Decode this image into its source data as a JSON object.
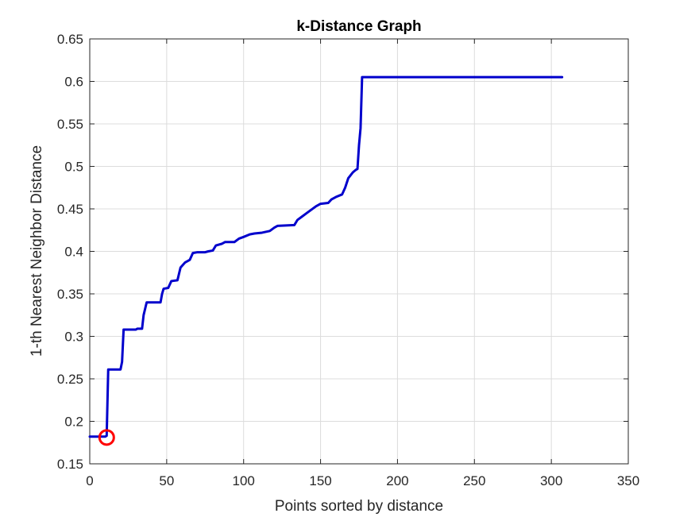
{
  "chart_data": {
    "type": "line",
    "title": "k-Distance Graph",
    "xlabel": "Points sorted by distance",
    "ylabel": "1-th Nearest Neighbor Distance",
    "xlim": [
      0,
      350
    ],
    "ylim": [
      0.15,
      0.65
    ],
    "xticks": [
      "0",
      "50",
      "100",
      "150",
      "200",
      "250",
      "300",
      "350"
    ],
    "yticks": [
      "0.15",
      "0.2",
      "0.25",
      "0.3",
      "0.35",
      "0.4",
      "0.45",
      "0.5",
      "0.55",
      "0.6",
      "0.65"
    ],
    "grid": true,
    "series": [
      {
        "color": "#0000cc",
        "points": [
          [
            0,
            0.182
          ],
          [
            10,
            0.182
          ],
          [
            11,
            0.183
          ],
          [
            12,
            0.261
          ],
          [
            20,
            0.261
          ],
          [
            21,
            0.27
          ],
          [
            22,
            0.308
          ],
          [
            30,
            0.308
          ],
          [
            31,
            0.309
          ],
          [
            34,
            0.309
          ],
          [
            35,
            0.325
          ],
          [
            37,
            0.34
          ],
          [
            46,
            0.34
          ],
          [
            47,
            0.35
          ],
          [
            48,
            0.356
          ],
          [
            51,
            0.357
          ],
          [
            53,
            0.365
          ],
          [
            57,
            0.366
          ],
          [
            59,
            0.381
          ],
          [
            62,
            0.387
          ],
          [
            65,
            0.39
          ],
          [
            67,
            0.398
          ],
          [
            70,
            0.399
          ],
          [
            75,
            0.399
          ],
          [
            77,
            0.4
          ],
          [
            80,
            0.401
          ],
          [
            82,
            0.407
          ],
          [
            86,
            0.409
          ],
          [
            88,
            0.411
          ],
          [
            94,
            0.411
          ],
          [
            97,
            0.415
          ],
          [
            100,
            0.417
          ],
          [
            104,
            0.42
          ],
          [
            107,
            0.421
          ],
          [
            112,
            0.422
          ],
          [
            117,
            0.424
          ],
          [
            120,
            0.428
          ],
          [
            122,
            0.43
          ],
          [
            133,
            0.431
          ],
          [
            135,
            0.437
          ],
          [
            138,
            0.441
          ],
          [
            141,
            0.445
          ],
          [
            144,
            0.449
          ],
          [
            147,
            0.453
          ],
          [
            150,
            0.456
          ],
          [
            155,
            0.457
          ],
          [
            157,
            0.461
          ],
          [
            160,
            0.464
          ],
          [
            164,
            0.467
          ],
          [
            166,
            0.475
          ],
          [
            168,
            0.486
          ],
          [
            171,
            0.493
          ],
          [
            173,
            0.496
          ],
          [
            174,
            0.497
          ],
          [
            175,
            0.525
          ],
          [
            176,
            0.545
          ],
          [
            177,
            0.605
          ],
          [
            307,
            0.605
          ]
        ]
      }
    ],
    "marker": {
      "x": 11,
      "y": 0.181,
      "shape": "circle",
      "color": "#ff0000"
    }
  }
}
